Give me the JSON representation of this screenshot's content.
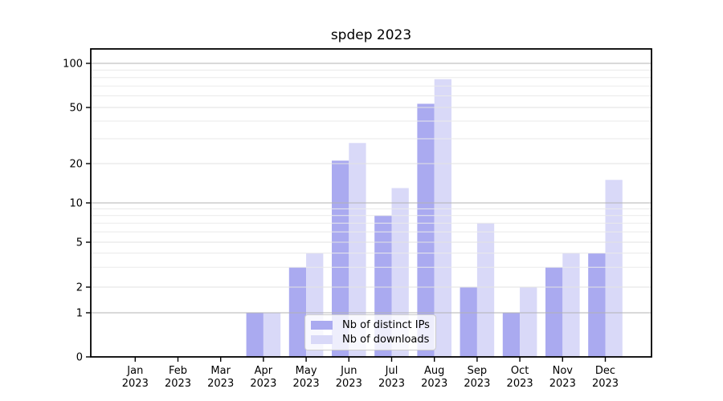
{
  "figure": {
    "title": "spdep 2023",
    "background": "#ffffff"
  },
  "legend": {
    "items": [
      {
        "label": "Nb of distinct IPs",
        "color": "#aaaaf0"
      },
      {
        "label": "Nb of downloads",
        "color": "#d9d9f8"
      }
    ]
  },
  "chart_data": {
    "type": "bar",
    "title": "spdep 2023",
    "categories": [
      "Jan 2023",
      "Feb 2023",
      "Mar 2023",
      "Apr 2023",
      "May 2023",
      "Jun 2023",
      "Jul 2023",
      "Aug 2023",
      "Sep 2023",
      "Oct 2023",
      "Nov 2023",
      "Dec 2023"
    ],
    "series": [
      {
        "name": "Nb of distinct IPs",
        "color": "#aaaaf0",
        "values": [
          0,
          0,
          0,
          1,
          3,
          21,
          8,
          53,
          2,
          1,
          3,
          4
        ]
      },
      {
        "name": "Nb of downloads",
        "color": "#d9d9f8",
        "values": [
          0,
          0,
          0,
          1,
          4,
          28,
          13,
          78,
          7,
          2,
          4,
          15
        ]
      }
    ],
    "xlabel": "",
    "ylabel": "",
    "yscale": "symlog",
    "ylim": [
      0,
      125
    ],
    "yticks": [
      0,
      1,
      2,
      5,
      10,
      20,
      50,
      100
    ],
    "minor_yticks": [
      3,
      4,
      6,
      7,
      8,
      9,
      30,
      40,
      60,
      70,
      80,
      90
    ],
    "grid": true,
    "legend_position": "lower center",
    "axis_color": "#000000",
    "tick_label_color": "#000000",
    "grid_decade_color": "#b3b3b3",
    "grid_labeled_color": "#e2e2e2",
    "grid_minor_color": "#eaeaea"
  }
}
